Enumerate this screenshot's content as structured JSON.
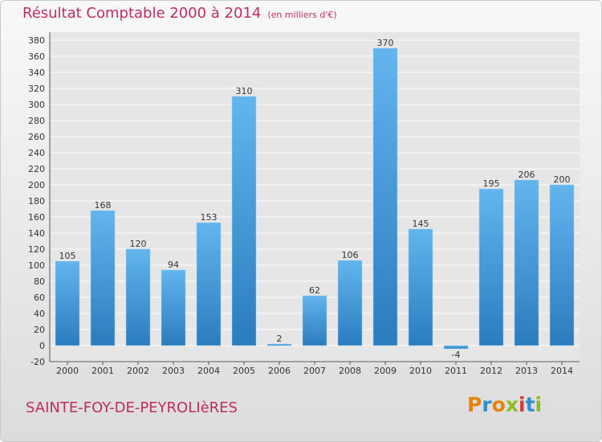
{
  "header": {
    "title": "Résultat Comptable 2000 à 2014",
    "unit": "(en milliers d'€)"
  },
  "footer": {
    "commune": "SAINTE-FOY-DE-PEYROLIèRES",
    "logo_text": "Proxiti",
    "logo_colors": [
      "#e8820a",
      "#2f8fd0",
      "#e8820a",
      "#8dbb24",
      "#d23c34",
      "#2f8fd0",
      "#8dbb24"
    ]
  },
  "colors": {
    "bar_top": "#63b5ee",
    "bar_bottom": "#2a7cbe",
    "text_accent": "#c02c62"
  },
  "chart_data": {
    "type": "bar",
    "categories": [
      "2000",
      "2001",
      "2002",
      "2003",
      "2004",
      "2005",
      "2006",
      "2007",
      "2008",
      "2009",
      "2010",
      "2011",
      "2012",
      "2013",
      "2014"
    ],
    "values": [
      105,
      168,
      120,
      94,
      153,
      310,
      2,
      62,
      106,
      370,
      145,
      -4,
      195,
      206,
      200
    ],
    "ylim": [
      -20,
      380
    ],
    "ytick_step": 20,
    "grid": true,
    "legend": "none"
  }
}
